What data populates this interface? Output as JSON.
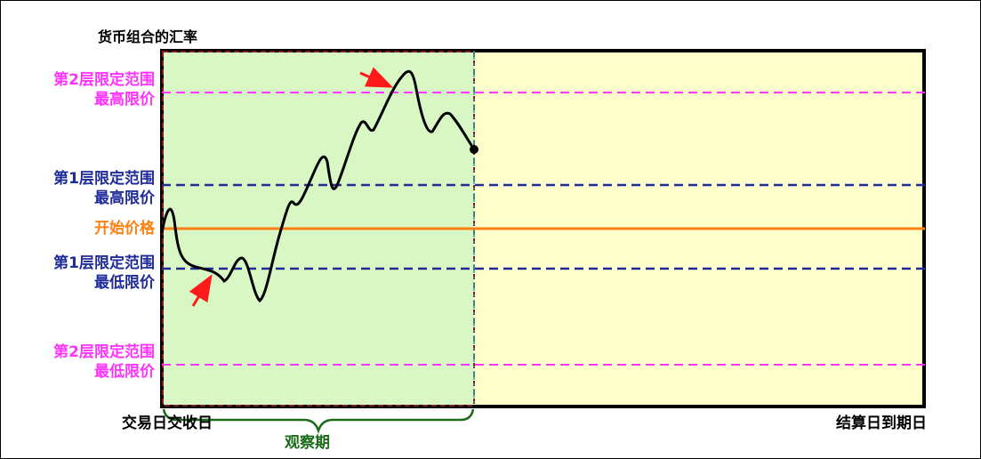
{
  "title": "货币组合的汇率",
  "levels": {
    "l2_high": {
      "line1": "第2层限定范围",
      "line2": "最高限价",
      "color": "#ff33ff"
    },
    "l1_high": {
      "line1": "第1层限定范围",
      "line2": "最高限价",
      "color": "#1f2b99"
    },
    "start": {
      "text": "开始价格",
      "color": "#ff7f11"
    },
    "l1_low": {
      "line1": "第1层限定范围",
      "line2": "最低限价",
      "color": "#1f2b99"
    },
    "l2_low": {
      "line1": "第2层限定范围",
      "line2": "最低限价",
      "color": "#ff33ff"
    }
  },
  "bottom": {
    "trade_date": "交易日交收日",
    "settle_date": "结算日到期日",
    "observation": "观察期",
    "observation_color": "#1b6b1b"
  },
  "colors": {
    "observation_fill": "#d9f7c4",
    "remaining_fill": "#ffffcc",
    "curve": "#000000",
    "arrows": "#ff1a1a",
    "divider": "#2aa3a3"
  }
}
